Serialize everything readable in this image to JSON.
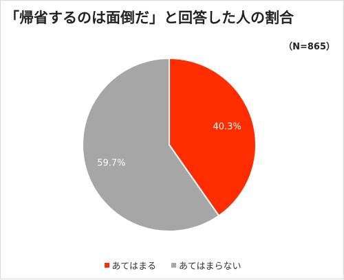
{
  "title": "「帰省するのは面倒だ」と回答した人の割合",
  "sample_size": "（N=865）",
  "chart_data": {
    "type": "pie",
    "categories": [
      "あてはまる",
      "あてはまらない"
    ],
    "values": [
      40.3,
      59.7
    ],
    "data_labels": [
      "40.3%",
      "59.7%"
    ],
    "colors": [
      "#ff2d00",
      "#a6a6a6"
    ],
    "legend": "bottom-center"
  },
  "legend_items": [
    {
      "label": "あてはまる",
      "color": "#ff2d00"
    },
    {
      "label": "あてはまらない",
      "color": "#a6a6a6"
    }
  ]
}
